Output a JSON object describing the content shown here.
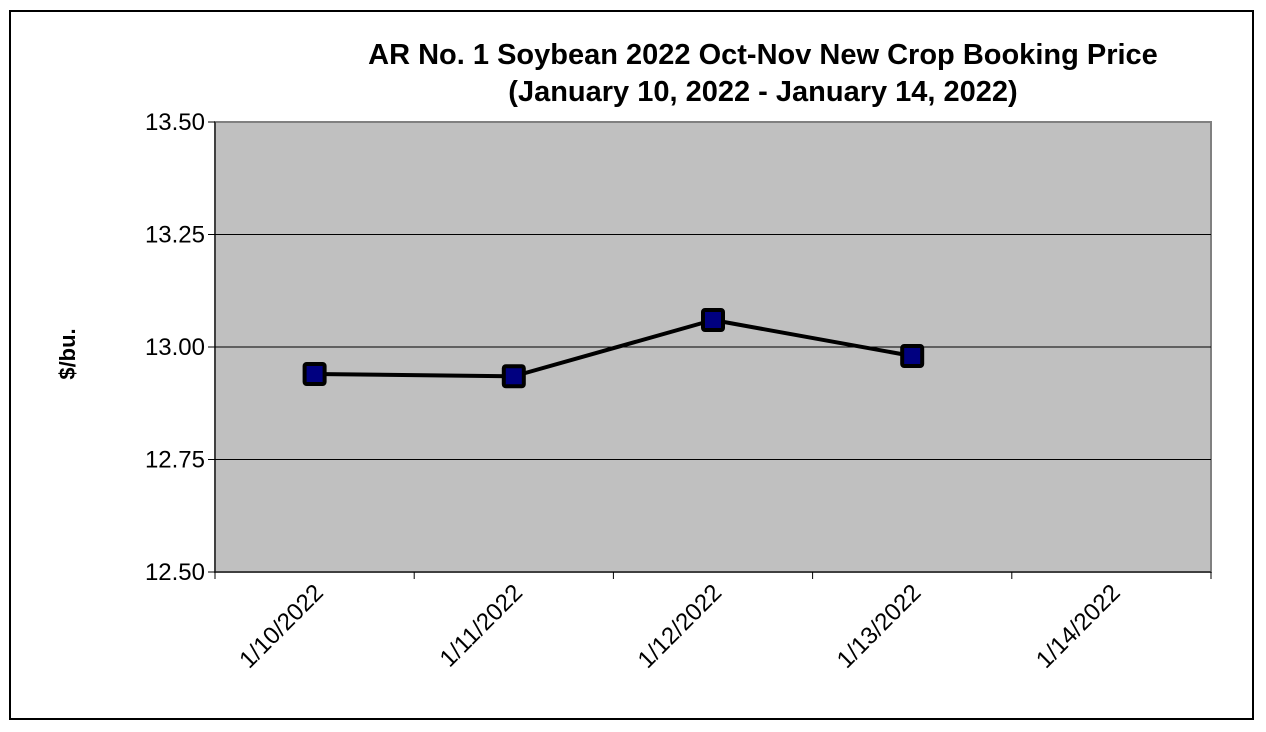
{
  "chart_data": {
    "type": "line",
    "title": "AR No. 1 Soybean 2022 Oct-Nov New Crop Booking Price",
    "subtitle": "(January 10, 2022 - January 14, 2022)",
    "xlabel": "",
    "ylabel": "$/bu.",
    "categories": [
      "1/10/2022",
      "1/11/2022",
      "1/12/2022",
      "1/13/2022",
      "1/14/2022"
    ],
    "series": [
      {
        "values": [
          12.94,
          12.935,
          13.06,
          12.98,
          null
        ]
      }
    ],
    "ylim": [
      12.5,
      13.5
    ],
    "yticks": [
      "12.50",
      "12.75",
      "13.00",
      "13.25",
      "13.50"
    ],
    "ytick_values": [
      12.5,
      12.75,
      13.0,
      13.25,
      13.5
    ],
    "grid": true,
    "legend": "none",
    "colors": {
      "plot_background": "#c0c0c0",
      "line": "#000000",
      "marker_fill": "#000080",
      "marker_edge": "#000000",
      "gridline": "#000000"
    }
  }
}
